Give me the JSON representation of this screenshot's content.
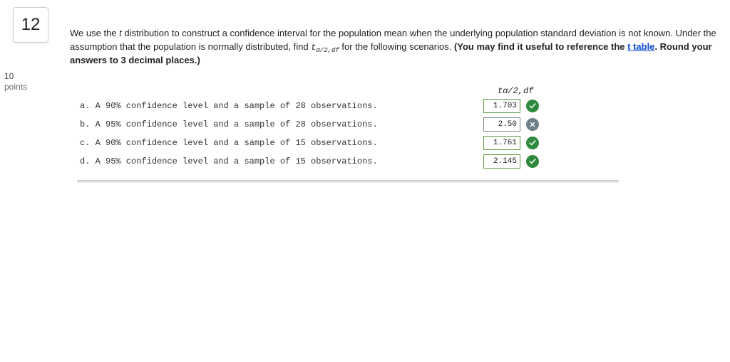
{
  "question_number": "12",
  "points_value": "10",
  "points_label": "points",
  "prompt": {
    "p1a": "We use the ",
    "p1_ital": "t ",
    "p1b": "distribution to construct a confidence interval for the population mean when the underlying population standard deviation is not known. Under the assumption that the population is normally distributed, find ",
    "tvar": "t",
    "tvar_sub": "α/2,df",
    "p1c": " for the following scenarios. ",
    "bold_a": "(You may find it useful to reference the ",
    "link": "t table",
    "bold_b": ". Round your answers to 3 decimal places.)"
  },
  "answers": {
    "header_tvar": "t",
    "header_sub": "α/2,df",
    "rows": [
      {
        "label": "a.  A 90% confidence level and a sample of 28 observations.",
        "value": "1.703",
        "status": "ok"
      },
      {
        "label": "b.  A 95% confidence level and a sample of 28 observations.",
        "value": "2.50",
        "status": "no"
      },
      {
        "label": "c.  A 90% confidence level and a sample of 15 observations.",
        "value": "1.761",
        "status": "ok"
      },
      {
        "label": "d.  A 95% confidence level and a sample of 15 observations.",
        "value": "2.145",
        "status": "ok"
      }
    ]
  },
  "colors": {
    "ok": "#2e8b3d",
    "no": "#6e808c",
    "box_ok": "#5b9a3e",
    "box_no": "#7a878f"
  }
}
